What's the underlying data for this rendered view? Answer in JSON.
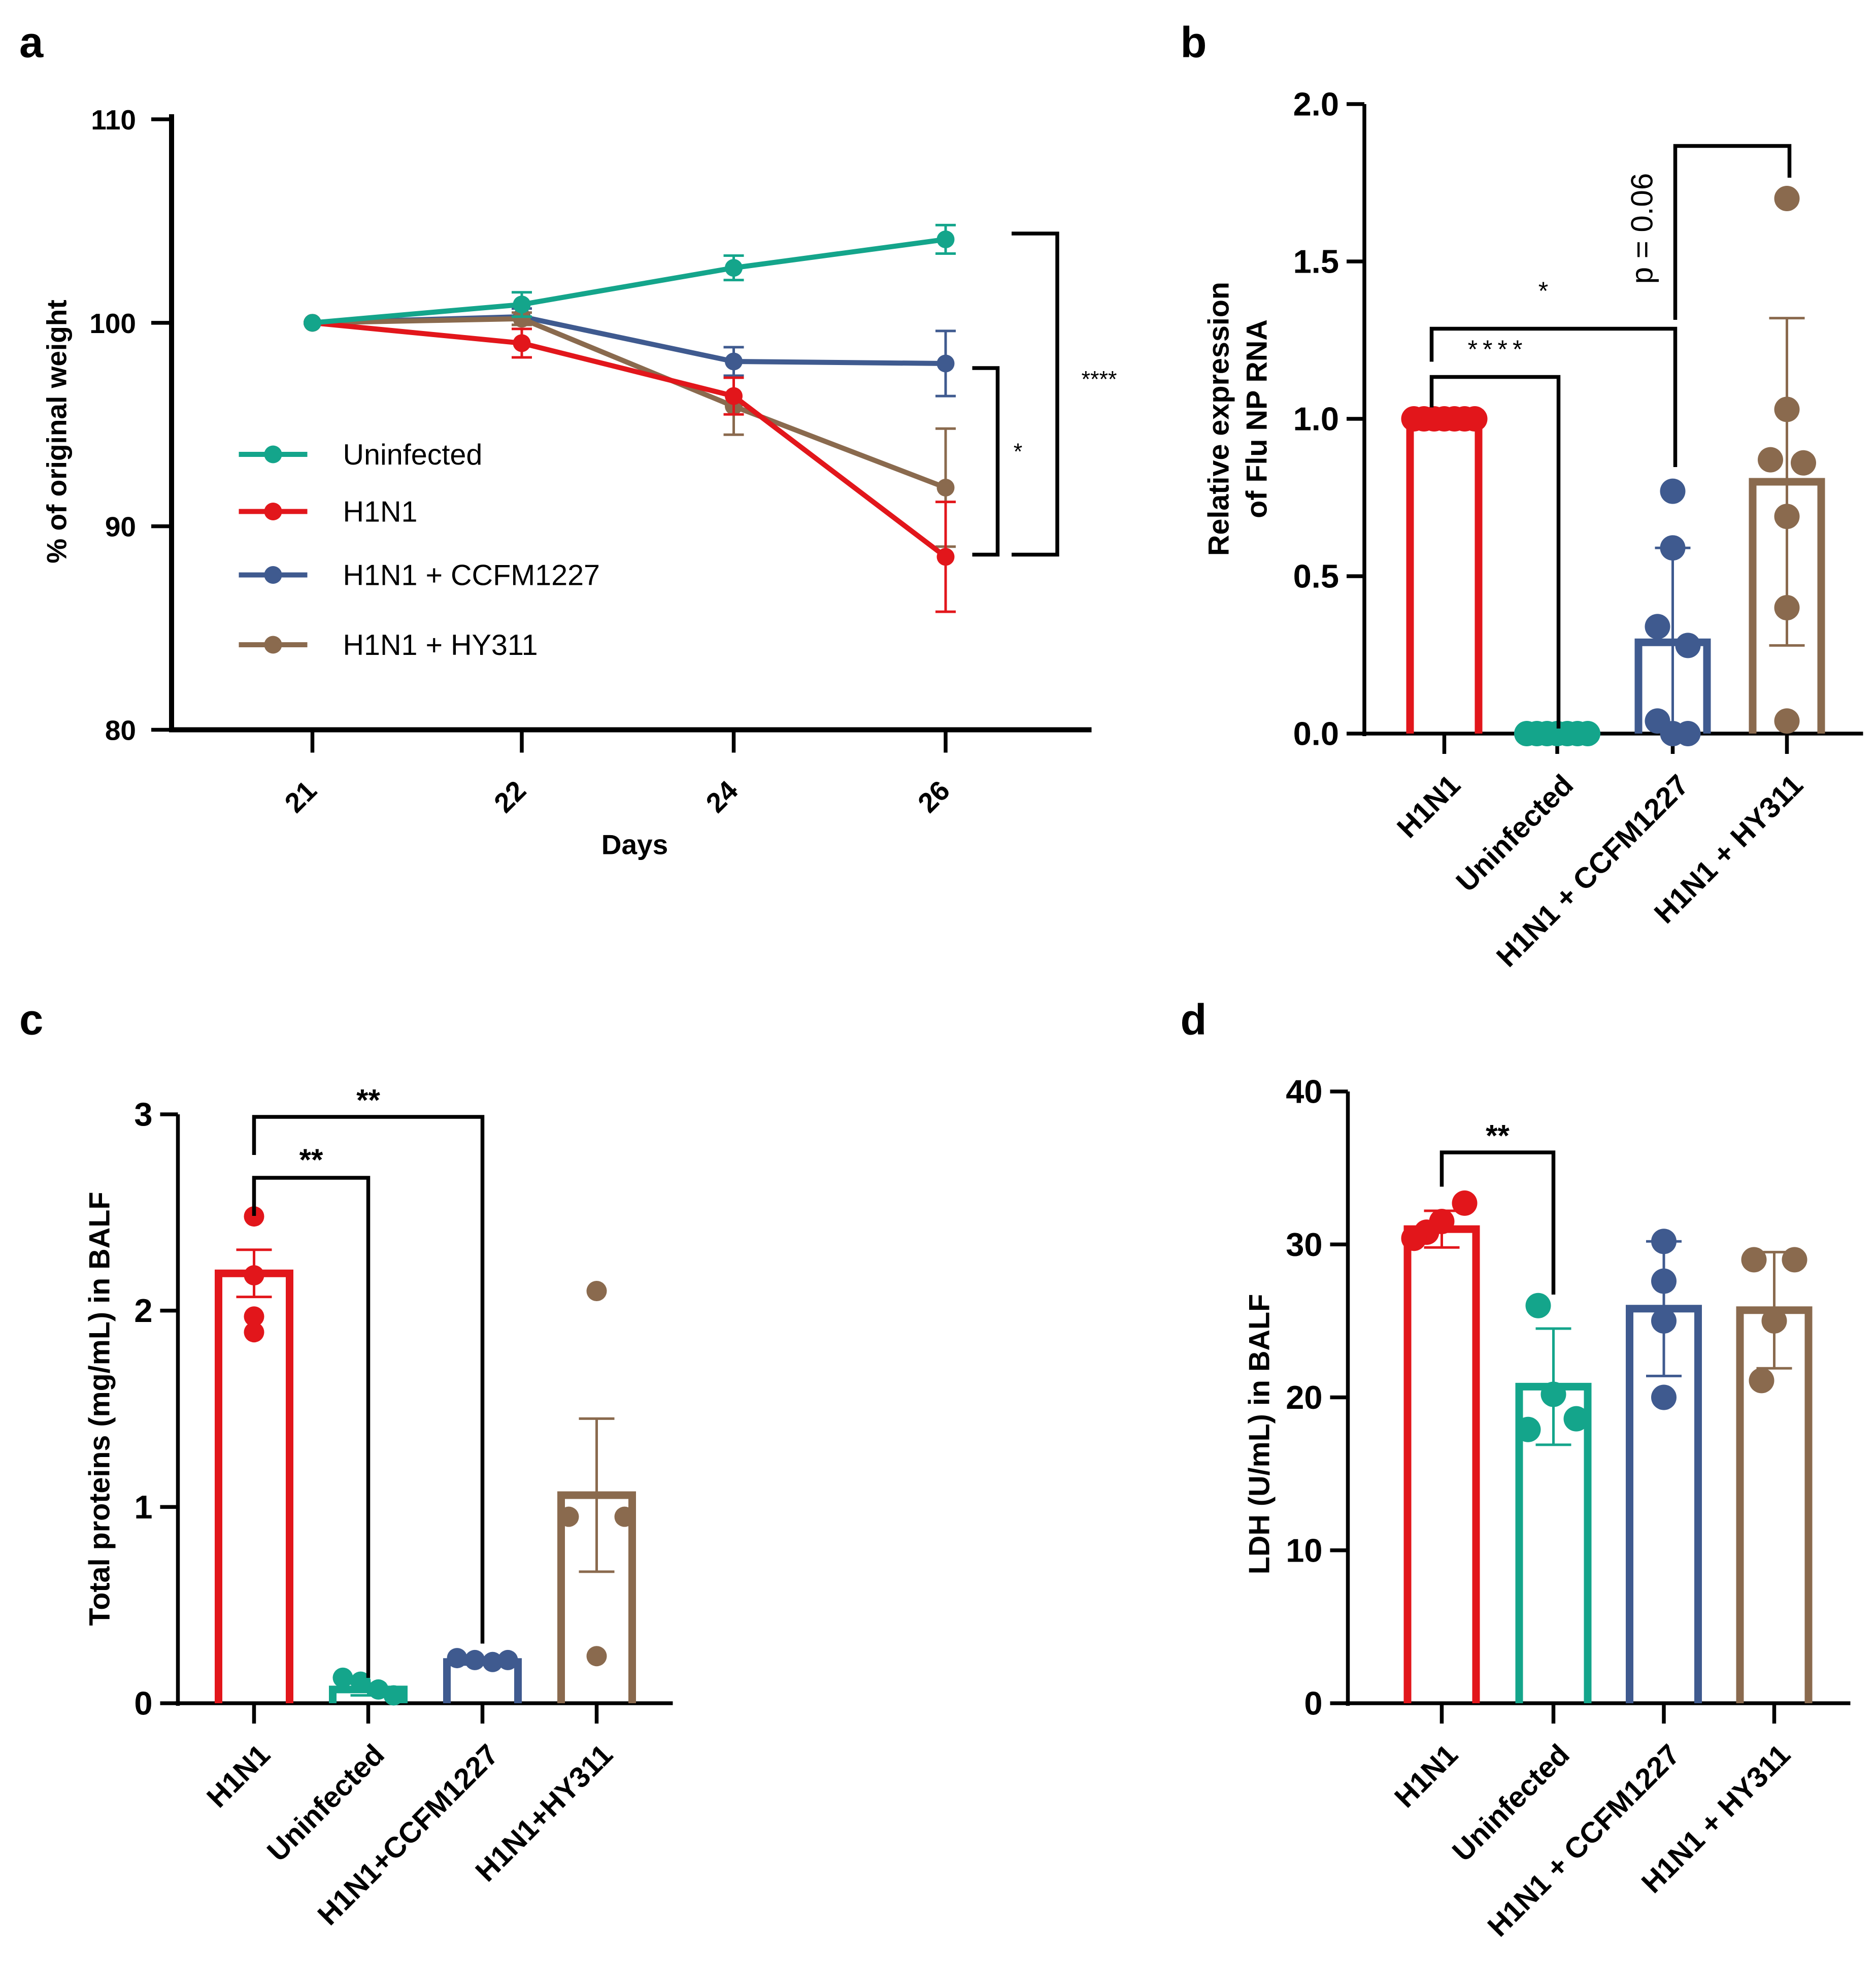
{
  "colors": {
    "uninfected": "#14a58b",
    "h1n1": "#e2161b",
    "ccfm": "#3f5a8f",
    "hy311": "#8a6a4e",
    "axis": "#000000"
  },
  "chart_data": [
    {
      "panel": "a",
      "type": "line",
      "xlabel": "Days",
      "ylabel": "% of original weight",
      "categories": [
        "21",
        "22",
        "24",
        "26"
      ],
      "ylim": [
        80,
        110
      ],
      "yticks": [
        "80",
        "90",
        "100",
        "110"
      ],
      "legend_position": "center-left",
      "series": [
        {
          "name": "Uninfected",
          "color_key": "uninfected",
          "values": [
            100,
            100.9,
            102.7,
            104.1
          ],
          "err": [
            0,
            0.6,
            0.6,
            0.7
          ]
        },
        {
          "name": "H1N1",
          "color_key": "h1n1",
          "values": [
            100,
            99.0,
            96.4,
            88.5
          ],
          "err": [
            0,
            0.7,
            0.9,
            2.7
          ]
        },
        {
          "name": "H1N1 + CCFM1227",
          "color_key": "ccfm",
          "values": [
            100,
            100.3,
            98.1,
            98.0
          ],
          "err": [
            0,
            0.4,
            0.7,
            1.6
          ]
        },
        {
          "name": "H1N1 + HY311",
          "color_key": "hy311",
          "values": [
            100,
            100.2,
            95.9,
            91.9
          ],
          "err": [
            0,
            0.3,
            1.4,
            2.9
          ]
        }
      ],
      "annotations": [
        "*",
        "****"
      ]
    },
    {
      "panel": "b",
      "type": "bar",
      "ylabel": [
        "Relative expression",
        "of  Flu NP RNA"
      ],
      "categories": [
        "H1N1",
        "Uninfected",
        "H1N1 + CCFM1227",
        "H1N1 + HY311"
      ],
      "color_keys": [
        "h1n1",
        "uninfected",
        "ccfm",
        "hy311"
      ],
      "values": [
        1.0,
        0.0,
        0.29,
        0.8
      ],
      "err": [
        0,
        0,
        0.3,
        0.52
      ],
      "points": [
        [
          1,
          1,
          1,
          1,
          1,
          1,
          1
        ],
        [
          0,
          0,
          0,
          0,
          0,
          0,
          0
        ],
        [
          0.77,
          0.59,
          0.34,
          0.28,
          0.04,
          0,
          0
        ],
        [
          1.7,
          1.03,
          0.87,
          0.86,
          0.69,
          0.4,
          0.04
        ]
      ],
      "ylim": [
        0,
        2.0
      ],
      "yticks": [
        "0.0",
        "0.5",
        "1.0",
        "1.5",
        "2.0"
      ],
      "annotations": [
        "****",
        "*",
        "p = 0.06"
      ]
    },
    {
      "panel": "c",
      "type": "bar",
      "ylabel": "Total proteins (mg/mL) in BALF",
      "categories": [
        "H1N1",
        "Uninfected",
        "H1N1+CCFM1227",
        "H1N1+HY311"
      ],
      "color_keys": [
        "h1n1",
        "uninfected",
        "ccfm",
        "hy311"
      ],
      "values": [
        2.19,
        0.07,
        0.21,
        1.06
      ],
      "err": [
        0.12,
        0.03,
        0.01,
        0.39
      ],
      "points": [
        [
          2.48,
          2.18,
          1.97,
          1.89
        ],
        [
          0.13,
          0.11,
          0.07,
          0.04
        ],
        [
          0.23,
          0.22,
          0.21,
          0.22
        ],
        [
          2.1,
          0.95,
          0.95,
          0.24
        ]
      ],
      "ylim": [
        0,
        3
      ],
      "yticks": [
        "0",
        "1",
        "2",
        "3"
      ],
      "annotations": [
        "**",
        "**"
      ]
    },
    {
      "panel": "d",
      "type": "bar",
      "ylabel": "LDH (U/mL) in BALF",
      "categories": [
        "H1N1",
        "Uninfected",
        "H1N1 + CCFM1227",
        "H1N1 + HY311"
      ],
      "color_keys": [
        "h1n1",
        "uninfected",
        "ccfm",
        "hy311"
      ],
      "values": [
        31.0,
        20.7,
        25.8,
        25.7
      ],
      "err": [
        1.2,
        3.8,
        4.4,
        3.8
      ],
      "points": [
        [
          32.7,
          31.5,
          30.8,
          30.4
        ],
        [
          26.0,
          20.2,
          18.6,
          17.9
        ],
        [
          30.2,
          27.6,
          25.0,
          20.0
        ],
        [
          29.0,
          29.0,
          25.0,
          21.1
        ]
      ],
      "ylim": [
        0,
        40
      ],
      "yticks": [
        "0",
        "10",
        "20",
        "30",
        "40"
      ],
      "annotations": [
        "**"
      ]
    }
  ],
  "panel_labels": [
    "a",
    "b",
    "c",
    "d"
  ]
}
